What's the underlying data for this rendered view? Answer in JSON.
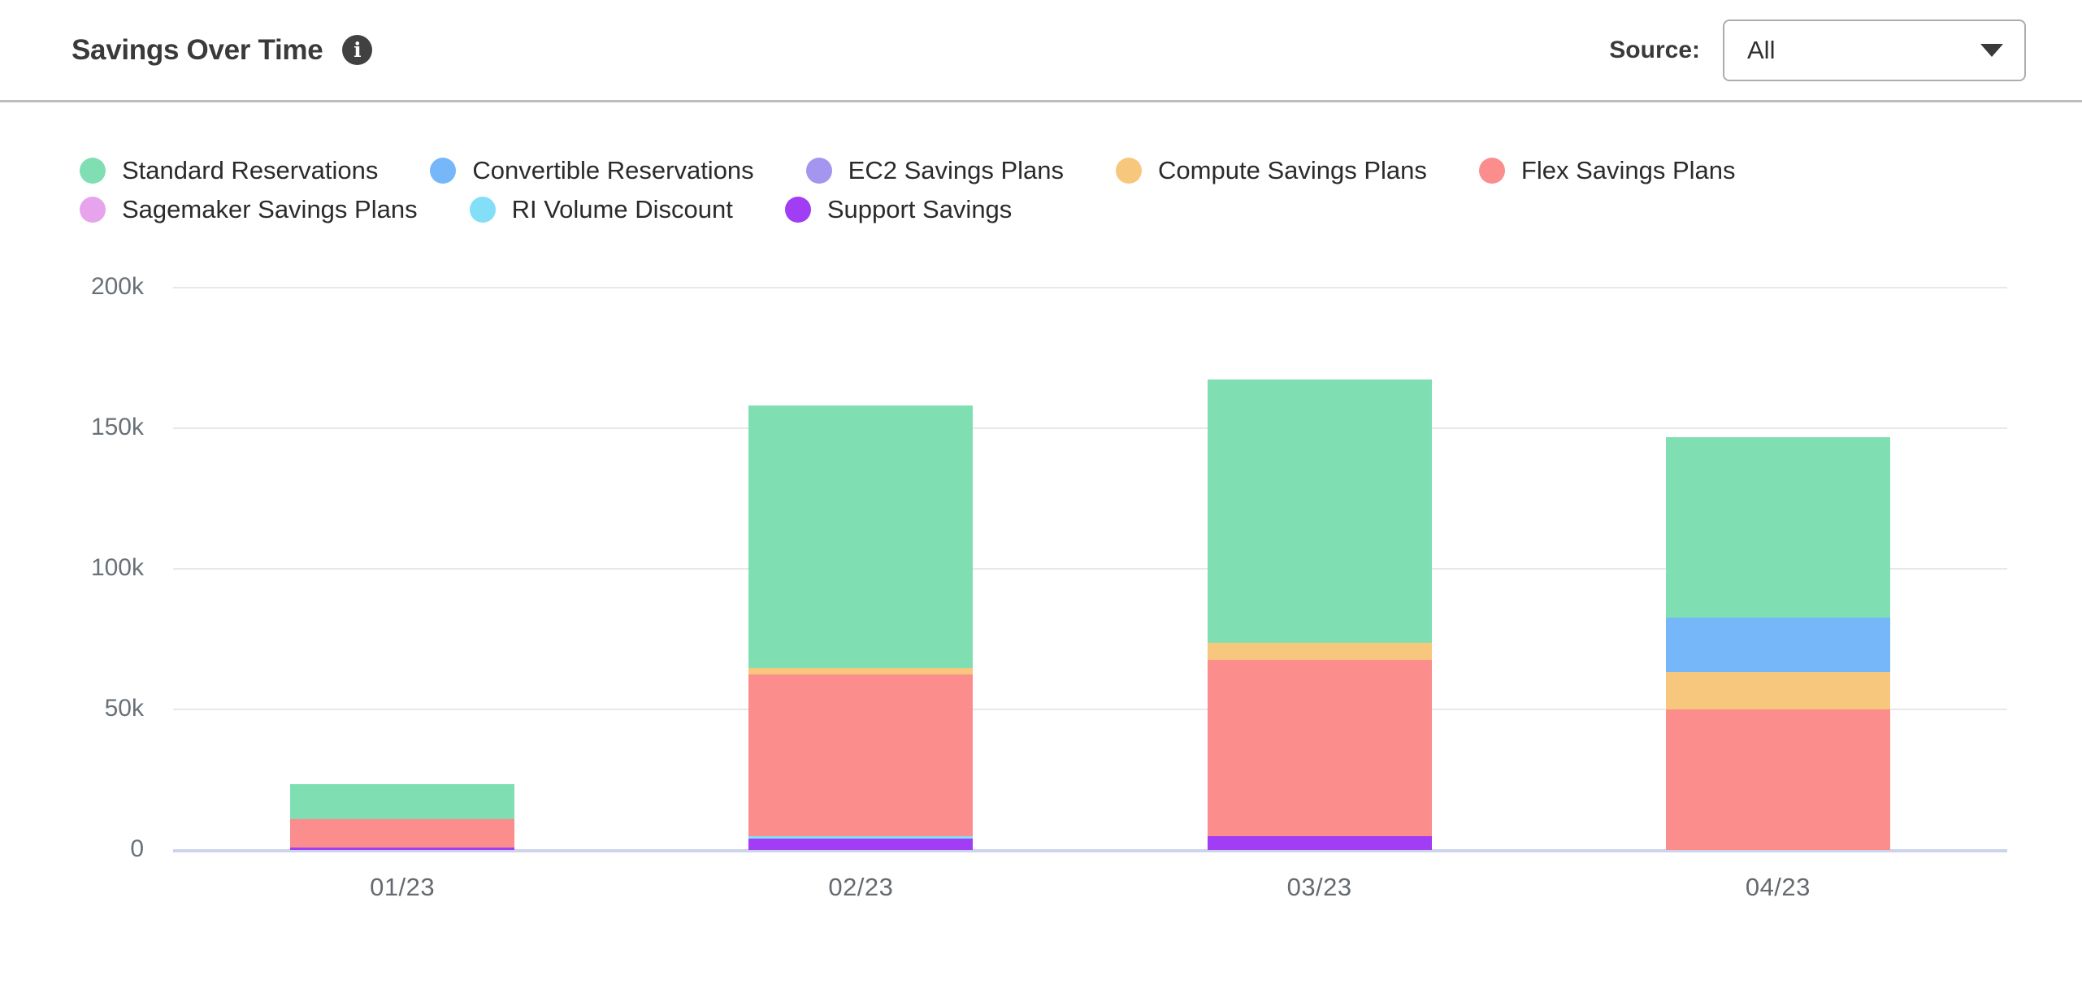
{
  "header": {
    "title": "Savings Over Time",
    "info_icon": "i",
    "source_label": "Source:",
    "source_value": "All"
  },
  "chart_data": {
    "type": "bar",
    "stacked": true,
    "title": "Savings Over Time",
    "categories": [
      "01/23",
      "02/23",
      "03/23",
      "04/23"
    ],
    "series": [
      {
        "name": "Standard Reservations",
        "color": "#7fdfb2",
        "values": [
          12400,
          93400,
          93500,
          64100
        ]
      },
      {
        "name": "Convertible Reservations",
        "color": "#76b7fa",
        "values": [
          0,
          0,
          0,
          19400
        ]
      },
      {
        "name": "EC2 Savings Plans",
        "color": "#a495ef",
        "values": [
          0,
          0,
          0,
          0
        ]
      },
      {
        "name": "Compute Savings Plans",
        "color": "#f8c77e",
        "values": [
          0,
          2300,
          6100,
          13300
        ]
      },
      {
        "name": "Flex Savings Plans",
        "color": "#fb8d8d",
        "values": [
          10000,
          57400,
          62700,
          50000
        ]
      },
      {
        "name": "Sagemaker Savings Plans",
        "color": "#e7a4ed",
        "values": [
          0,
          0,
          0,
          0
        ]
      },
      {
        "name": "RI Volume Discount",
        "color": "#82dff7",
        "values": [
          0,
          800,
          0,
          0
        ]
      },
      {
        "name": "Support Savings",
        "color": "#a03df5",
        "values": [
          1000,
          4100,
          4900,
          0
        ]
      }
    ],
    "stack_order_bottom_to_top": [
      "Support Savings",
      "RI Volume Discount",
      "Sagemaker Savings Plans",
      "Flex Savings Plans",
      "Compute Savings Plans",
      "EC2 Savings Plans",
      "Convertible Reservations",
      "Standard Reservations"
    ],
    "ylim": [
      0,
      200000
    ],
    "yticks": [
      {
        "value": 0,
        "label": "0"
      },
      {
        "value": 50000,
        "label": "50k"
      },
      {
        "value": 100000,
        "label": "100k"
      },
      {
        "value": 150000,
        "label": "150k"
      },
      {
        "value": 200000,
        "label": "200k"
      }
    ],
    "grid": true,
    "legend_position": "top"
  },
  "colors": {
    "axis_label": "#697077",
    "gridline": "#e8e8e8",
    "baseline": "#ccd3ea",
    "header_border": "#bcbcbc"
  }
}
